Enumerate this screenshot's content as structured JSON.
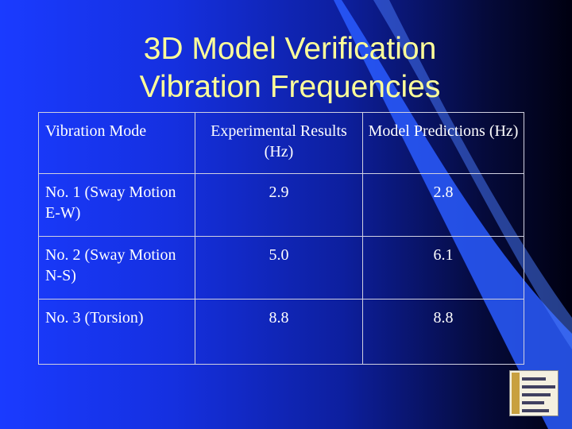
{
  "title": {
    "line1": "3D Model Verification",
    "line2": "Vibration Frequencies"
  },
  "table": {
    "headers": [
      "Vibration Mode",
      "Experimental Results (Hz)",
      "Model Predictions (Hz)"
    ],
    "rows": [
      [
        "No. 1 (Sway Motion E-W)",
        "2.9",
        "2.8"
      ],
      [
        "No. 2 (Sway Motion N-S)",
        "5.0",
        "6.1"
      ],
      [
        "No. 3 (Torsion)",
        "8.8",
        "8.8"
      ]
    ]
  },
  "colors": {
    "title": "#ffff99",
    "text": "#ffffff",
    "background_left": "#1a3bff",
    "background_right": "#000010",
    "curve": "#2a5cff"
  },
  "logo_icon": "university-crest-icon"
}
